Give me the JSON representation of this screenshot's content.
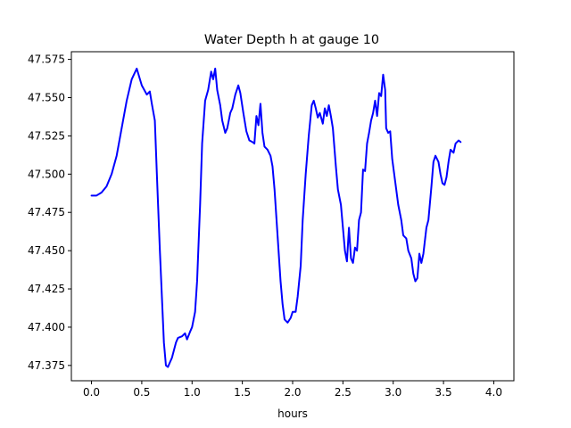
{
  "chart_data": {
    "type": "line",
    "title": "Water Depth h at gauge 10",
    "xlabel": "hours",
    "ylabel": "",
    "xlim": [
      -0.2,
      4.2
    ],
    "ylim": [
      47.365,
      47.58
    ],
    "xticks": [
      0.0,
      0.5,
      1.0,
      1.5,
      2.0,
      2.5,
      3.0,
      3.5,
      4.0
    ],
    "xtick_labels": [
      "0.0",
      "0.5",
      "1.0",
      "1.5",
      "2.0",
      "2.5",
      "3.0",
      "3.5",
      "4.0"
    ],
    "yticks": [
      47.375,
      47.4,
      47.425,
      47.45,
      47.475,
      47.5,
      47.525,
      47.55,
      47.575
    ],
    "ytick_labels": [
      "47.375",
      "47.400",
      "47.425",
      "47.450",
      "47.475",
      "47.500",
      "47.525",
      "47.550",
      "47.575"
    ],
    "grid": false,
    "series": [
      {
        "color": "#0000ff",
        "points": [
          [
            0.0,
            47.486
          ],
          [
            0.05,
            47.486
          ],
          [
            0.1,
            47.488
          ],
          [
            0.15,
            47.492
          ],
          [
            0.2,
            47.5
          ],
          [
            0.25,
            47.512
          ],
          [
            0.3,
            47.53
          ],
          [
            0.35,
            47.548
          ],
          [
            0.4,
            47.562
          ],
          [
            0.45,
            47.569
          ],
          [
            0.5,
            47.558
          ],
          [
            0.55,
            47.552
          ],
          [
            0.58,
            47.554
          ],
          [
            0.6,
            47.546
          ],
          [
            0.63,
            47.535
          ],
          [
            0.65,
            47.5
          ],
          [
            0.68,
            47.45
          ],
          [
            0.7,
            47.42
          ],
          [
            0.72,
            47.39
          ],
          [
            0.74,
            47.375
          ],
          [
            0.76,
            47.374
          ],
          [
            0.78,
            47.377
          ],
          [
            0.8,
            47.38
          ],
          [
            0.84,
            47.39
          ],
          [
            0.86,
            47.393
          ],
          [
            0.9,
            47.394
          ],
          [
            0.93,
            47.396
          ],
          [
            0.95,
            47.392
          ],
          [
            0.98,
            47.397
          ],
          [
            1.0,
            47.4
          ],
          [
            1.03,
            47.41
          ],
          [
            1.05,
            47.43
          ],
          [
            1.08,
            47.48
          ],
          [
            1.1,
            47.52
          ],
          [
            1.13,
            47.548
          ],
          [
            1.16,
            47.555
          ],
          [
            1.19,
            47.567
          ],
          [
            1.21,
            47.562
          ],
          [
            1.23,
            47.569
          ],
          [
            1.25,
            47.555
          ],
          [
            1.28,
            47.545
          ],
          [
            1.3,
            47.535
          ],
          [
            1.33,
            47.527
          ],
          [
            1.35,
            47.53
          ],
          [
            1.38,
            47.54
          ],
          [
            1.4,
            47.543
          ],
          [
            1.43,
            47.552
          ],
          [
            1.46,
            47.558
          ],
          [
            1.48,
            47.553
          ],
          [
            1.51,
            47.54
          ],
          [
            1.54,
            47.528
          ],
          [
            1.57,
            47.522
          ],
          [
            1.6,
            47.521
          ],
          [
            1.62,
            47.52
          ],
          [
            1.64,
            47.538
          ],
          [
            1.66,
            47.532
          ],
          [
            1.68,
            47.546
          ],
          [
            1.7,
            47.527
          ],
          [
            1.72,
            47.518
          ],
          [
            1.75,
            47.516
          ],
          [
            1.78,
            47.512
          ],
          [
            1.8,
            47.505
          ],
          [
            1.82,
            47.49
          ],
          [
            1.85,
            47.46
          ],
          [
            1.88,
            47.43
          ],
          [
            1.9,
            47.415
          ],
          [
            1.92,
            47.405
          ],
          [
            1.95,
            47.403
          ],
          [
            1.98,
            47.406
          ],
          [
            2.0,
            47.41
          ],
          [
            2.03,
            47.41
          ],
          [
            2.05,
            47.42
          ],
          [
            2.08,
            47.44
          ],
          [
            2.1,
            47.47
          ],
          [
            2.13,
            47.5
          ],
          [
            2.16,
            47.525
          ],
          [
            2.19,
            47.545
          ],
          [
            2.21,
            47.548
          ],
          [
            2.23,
            47.543
          ],
          [
            2.25,
            47.537
          ],
          [
            2.27,
            47.54
          ],
          [
            2.3,
            47.533
          ],
          [
            2.32,
            47.543
          ],
          [
            2.34,
            47.538
          ],
          [
            2.36,
            47.545
          ],
          [
            2.38,
            47.538
          ],
          [
            2.4,
            47.53
          ],
          [
            2.43,
            47.505
          ],
          [
            2.45,
            47.49
          ],
          [
            2.48,
            47.48
          ],
          [
            2.5,
            47.465
          ],
          [
            2.52,
            47.45
          ],
          [
            2.54,
            47.443
          ],
          [
            2.56,
            47.465
          ],
          [
            2.58,
            47.445
          ],
          [
            2.6,
            47.442
          ],
          [
            2.62,
            47.452
          ],
          [
            2.64,
            47.45
          ],
          [
            2.66,
            47.47
          ],
          [
            2.68,
            47.475
          ],
          [
            2.7,
            47.503
          ],
          [
            2.72,
            47.502
          ],
          [
            2.74,
            47.52
          ],
          [
            2.76,
            47.527
          ],
          [
            2.78,
            47.535
          ],
          [
            2.8,
            47.54
          ],
          [
            2.82,
            47.548
          ],
          [
            2.84,
            47.538
          ],
          [
            2.86,
            47.553
          ],
          [
            2.88,
            47.551
          ],
          [
            2.9,
            47.565
          ],
          [
            2.92,
            47.555
          ],
          [
            2.93,
            47.53
          ],
          [
            2.95,
            47.527
          ],
          [
            2.97,
            47.528
          ],
          [
            2.99,
            47.51
          ],
          [
            3.02,
            47.495
          ],
          [
            3.05,
            47.48
          ],
          [
            3.08,
            47.47
          ],
          [
            3.1,
            47.46
          ],
          [
            3.13,
            47.458
          ],
          [
            3.15,
            47.45
          ],
          [
            3.18,
            47.445
          ],
          [
            3.2,
            47.435
          ],
          [
            3.22,
            47.43
          ],
          [
            3.24,
            47.432
          ],
          [
            3.26,
            47.448
          ],
          [
            3.28,
            47.442
          ],
          [
            3.3,
            47.448
          ],
          [
            3.33,
            47.465
          ],
          [
            3.35,
            47.47
          ],
          [
            3.38,
            47.492
          ],
          [
            3.4,
            47.508
          ],
          [
            3.42,
            47.512
          ],
          [
            3.45,
            47.508
          ],
          [
            3.47,
            47.5
          ],
          [
            3.49,
            47.494
          ],
          [
            3.51,
            47.493
          ],
          [
            3.53,
            47.498
          ],
          [
            3.55,
            47.508
          ],
          [
            3.57,
            47.516
          ],
          [
            3.6,
            47.514
          ],
          [
            3.62,
            47.52
          ],
          [
            3.65,
            47.522
          ],
          [
            3.67,
            47.521
          ]
        ]
      }
    ]
  }
}
